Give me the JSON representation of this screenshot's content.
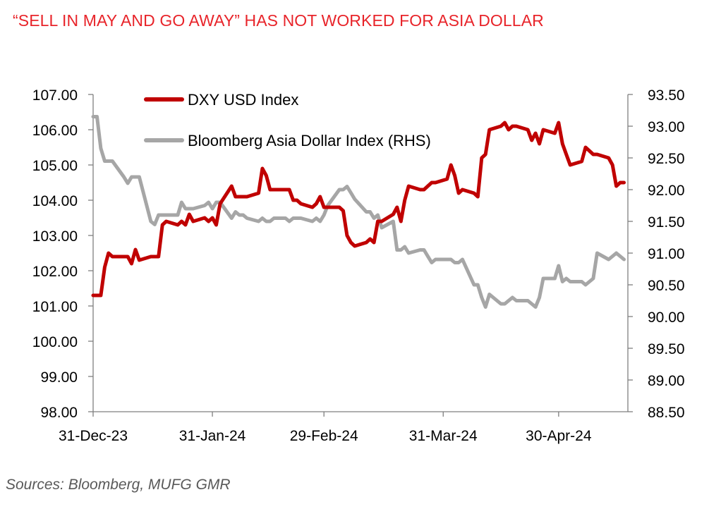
{
  "title": "“SELL IN MAY AND GO AWAY” HAS NOT WORKED FOR ASIA DOLLAR",
  "source": "Sources:  Bloomberg, MUFG GMR",
  "chart_data": {
    "type": "line",
    "title": "“SELL IN MAY AND GO AWAY” HAS NOT WORKED FOR ASIA DOLLAR",
    "x_ticks": [
      "31-Dec-23",
      "31-Jan-24",
      "29-Feb-24",
      "31-Mar-24",
      "30-Apr-24"
    ],
    "xlim": [
      "2023-12-31",
      "2024-05-18"
    ],
    "y_left": {
      "lim": [
        98,
        107
      ],
      "ticks": [
        "98.00",
        "99.00",
        "100.00",
        "101.00",
        "102.00",
        "103.00",
        "104.00",
        "105.00",
        "106.00",
        "107.00"
      ]
    },
    "y_right": {
      "lim": [
        88.5,
        93.5
      ],
      "ticks": [
        "88.50",
        "89.00",
        "89.50",
        "90.00",
        "90.50",
        "91.00",
        "91.50",
        "92.00",
        "92.50",
        "93.00",
        "93.50"
      ]
    },
    "legend_position": "top-left",
    "grid": false,
    "series": [
      {
        "name": "DXY USD Index",
        "axis": "left",
        "color": "#c00000",
        "points": [
          [
            "2023-12-31",
            101.3
          ],
          [
            "2024-01-01",
            101.3
          ],
          [
            "2024-01-02",
            101.3
          ],
          [
            "2024-01-03",
            102.1
          ],
          [
            "2024-01-04",
            102.5
          ],
          [
            "2024-01-05",
            102.4
          ],
          [
            "2024-01-08",
            102.4
          ],
          [
            "2024-01-09",
            102.4
          ],
          [
            "2024-01-10",
            102.2
          ],
          [
            "2024-01-11",
            102.6
          ],
          [
            "2024-01-12",
            102.3
          ],
          [
            "2024-01-15",
            102.4
          ],
          [
            "2024-01-16",
            102.4
          ],
          [
            "2024-01-17",
            102.4
          ],
          [
            "2024-01-18",
            103.3
          ],
          [
            "2024-01-19",
            103.4
          ],
          [
            "2024-01-22",
            103.3
          ],
          [
            "2024-01-23",
            103.4
          ],
          [
            "2024-01-24",
            103.3
          ],
          [
            "2024-01-25",
            103.6
          ],
          [
            "2024-01-26",
            103.4
          ],
          [
            "2024-01-29",
            103.5
          ],
          [
            "2024-01-30",
            103.4
          ],
          [
            "2024-01-31",
            103.5
          ],
          [
            "2024-02-01",
            103.3
          ],
          [
            "2024-02-02",
            103.9
          ],
          [
            "2024-02-05",
            104.4
          ],
          [
            "2024-02-06",
            104.1
          ],
          [
            "2024-02-07",
            104.1
          ],
          [
            "2024-02-08",
            104.1
          ],
          [
            "2024-02-09",
            104.1
          ],
          [
            "2024-02-12",
            104.2
          ],
          [
            "2024-02-13",
            104.9
          ],
          [
            "2024-02-14",
            104.7
          ],
          [
            "2024-02-15",
            104.3
          ],
          [
            "2024-02-16",
            104.3
          ],
          [
            "2024-02-19",
            104.3
          ],
          [
            "2024-02-20",
            104.3
          ],
          [
            "2024-02-21",
            104.0
          ],
          [
            "2024-02-22",
            104.0
          ],
          [
            "2024-02-23",
            103.9
          ],
          [
            "2024-02-26",
            103.8
          ],
          [
            "2024-02-27",
            103.9
          ],
          [
            "2024-02-28",
            104.1
          ],
          [
            "2024-02-29",
            103.8
          ],
          [
            "2024-03-01",
            103.8
          ],
          [
            "2024-03-04",
            103.8
          ],
          [
            "2024-03-05",
            103.7
          ],
          [
            "2024-03-06",
            103.0
          ],
          [
            "2024-03-07",
            102.8
          ],
          [
            "2024-03-08",
            102.7
          ],
          [
            "2024-03-11",
            102.8
          ],
          [
            "2024-03-12",
            102.9
          ],
          [
            "2024-03-13",
            102.8
          ],
          [
            "2024-03-14",
            103.4
          ],
          [
            "2024-03-15",
            103.4
          ],
          [
            "2024-03-18",
            103.6
          ],
          [
            "2024-03-19",
            103.8
          ],
          [
            "2024-03-20",
            103.4
          ],
          [
            "2024-03-21",
            104.0
          ],
          [
            "2024-03-22",
            104.4
          ],
          [
            "2024-03-25",
            104.3
          ],
          [
            "2024-03-26",
            104.3
          ],
          [
            "2024-03-27",
            104.4
          ],
          [
            "2024-03-28",
            104.5
          ],
          [
            "2024-03-29",
            104.5
          ],
          [
            "2024-04-01",
            104.6
          ],
          [
            "2024-04-02",
            105.0
          ],
          [
            "2024-04-03",
            104.7
          ],
          [
            "2024-04-04",
            104.2
          ],
          [
            "2024-04-05",
            104.3
          ],
          [
            "2024-04-08",
            104.2
          ],
          [
            "2024-04-09",
            104.1
          ],
          [
            "2024-04-10",
            105.2
          ],
          [
            "2024-04-11",
            105.3
          ],
          [
            "2024-04-12",
            106.0
          ],
          [
            "2024-04-15",
            106.1
          ],
          [
            "2024-04-16",
            106.2
          ],
          [
            "2024-04-17",
            106.0
          ],
          [
            "2024-04-18",
            106.1
          ],
          [
            "2024-04-19",
            106.1
          ],
          [
            "2024-04-22",
            106.0
          ],
          [
            "2024-04-23",
            105.7
          ],
          [
            "2024-04-24",
            105.9
          ],
          [
            "2024-04-25",
            105.6
          ],
          [
            "2024-04-26",
            106.0
          ],
          [
            "2024-04-29",
            105.9
          ],
          [
            "2024-04-30",
            106.2
          ],
          [
            "2024-05-01",
            105.6
          ],
          [
            "2024-05-02",
            105.3
          ],
          [
            "2024-05-03",
            105.0
          ],
          [
            "2024-05-06",
            105.1
          ],
          [
            "2024-05-07",
            105.5
          ],
          [
            "2024-05-08",
            105.4
          ],
          [
            "2024-05-09",
            105.3
          ],
          [
            "2024-05-10",
            105.3
          ],
          [
            "2024-05-13",
            105.2
          ],
          [
            "2024-05-14",
            105.0
          ],
          [
            "2024-05-15",
            104.4
          ],
          [
            "2024-05-16",
            104.5
          ],
          [
            "2024-05-17",
            104.5
          ]
        ]
      },
      {
        "name": "Bloomberg Asia Dollar Index (RHS)",
        "axis": "right",
        "color": "#a6a6a6",
        "points": [
          [
            "2023-12-31",
            93.15
          ],
          [
            "2024-01-01",
            93.15
          ],
          [
            "2024-01-02",
            92.65
          ],
          [
            "2024-01-03",
            92.45
          ],
          [
            "2024-01-04",
            92.45
          ],
          [
            "2024-01-05",
            92.45
          ],
          [
            "2024-01-08",
            92.2
          ],
          [
            "2024-01-09",
            92.1
          ],
          [
            "2024-01-10",
            92.2
          ],
          [
            "2024-01-11",
            92.2
          ],
          [
            "2024-01-12",
            92.2
          ],
          [
            "2024-01-15",
            91.5
          ],
          [
            "2024-01-16",
            91.45
          ],
          [
            "2024-01-17",
            91.6
          ],
          [
            "2024-01-18",
            91.6
          ],
          [
            "2024-01-19",
            91.6
          ],
          [
            "2024-01-22",
            91.6
          ],
          [
            "2024-01-23",
            91.8
          ],
          [
            "2024-01-24",
            91.7
          ],
          [
            "2024-01-25",
            91.7
          ],
          [
            "2024-01-26",
            91.7
          ],
          [
            "2024-01-29",
            91.75
          ],
          [
            "2024-01-30",
            91.8
          ],
          [
            "2024-01-31",
            91.7
          ],
          [
            "2024-02-01",
            91.8
          ],
          [
            "2024-02-02",
            91.8
          ],
          [
            "2024-02-05",
            91.55
          ],
          [
            "2024-02-06",
            91.65
          ],
          [
            "2024-02-07",
            91.6
          ],
          [
            "2024-02-08",
            91.6
          ],
          [
            "2024-02-09",
            91.55
          ],
          [
            "2024-02-12",
            91.5
          ],
          [
            "2024-02-13",
            91.55
          ],
          [
            "2024-02-14",
            91.5
          ],
          [
            "2024-02-15",
            91.5
          ],
          [
            "2024-02-16",
            91.55
          ],
          [
            "2024-02-19",
            91.55
          ],
          [
            "2024-02-20",
            91.5
          ],
          [
            "2024-02-21",
            91.55
          ],
          [
            "2024-02-22",
            91.55
          ],
          [
            "2024-02-23",
            91.55
          ],
          [
            "2024-02-26",
            91.5
          ],
          [
            "2024-02-27",
            91.55
          ],
          [
            "2024-02-28",
            91.5
          ],
          [
            "2024-02-29",
            91.6
          ],
          [
            "2024-03-01",
            91.75
          ],
          [
            "2024-03-04",
            92.0
          ],
          [
            "2024-03-05",
            92.0
          ],
          [
            "2024-03-06",
            92.05
          ],
          [
            "2024-03-07",
            91.95
          ],
          [
            "2024-03-08",
            91.85
          ],
          [
            "2024-03-11",
            91.65
          ],
          [
            "2024-03-12",
            91.65
          ],
          [
            "2024-03-13",
            91.55
          ],
          [
            "2024-03-14",
            91.6
          ],
          [
            "2024-03-15",
            91.4
          ],
          [
            "2024-03-18",
            91.5
          ],
          [
            "2024-03-19",
            91.05
          ],
          [
            "2024-03-20",
            91.05
          ],
          [
            "2024-03-21",
            91.1
          ],
          [
            "2024-03-22",
            91.0
          ],
          [
            "2024-03-25",
            91.05
          ],
          [
            "2024-03-26",
            91.05
          ],
          [
            "2024-03-27",
            90.95
          ],
          [
            "2024-03-28",
            90.85
          ],
          [
            "2024-03-29",
            90.9
          ],
          [
            "2024-04-01",
            90.9
          ],
          [
            "2024-04-02",
            90.9
          ],
          [
            "2024-04-03",
            90.85
          ],
          [
            "2024-04-04",
            90.85
          ],
          [
            "2024-04-05",
            90.9
          ],
          [
            "2024-04-08",
            90.5
          ],
          [
            "2024-04-09",
            90.5
          ],
          [
            "2024-04-10",
            90.3
          ],
          [
            "2024-04-11",
            90.15
          ],
          [
            "2024-04-12",
            90.35
          ],
          [
            "2024-04-15",
            90.2
          ],
          [
            "2024-04-16",
            90.2
          ],
          [
            "2024-04-17",
            90.25
          ],
          [
            "2024-04-18",
            90.3
          ],
          [
            "2024-04-19",
            90.25
          ],
          [
            "2024-04-22",
            90.25
          ],
          [
            "2024-04-23",
            90.2
          ],
          [
            "2024-04-24",
            90.15
          ],
          [
            "2024-04-25",
            90.3
          ],
          [
            "2024-04-26",
            90.6
          ],
          [
            "2024-04-29",
            90.6
          ],
          [
            "2024-04-30",
            90.8
          ],
          [
            "2024-05-01",
            90.55
          ],
          [
            "2024-05-02",
            90.6
          ],
          [
            "2024-05-03",
            90.55
          ],
          [
            "2024-05-06",
            90.55
          ],
          [
            "2024-05-07",
            90.5
          ],
          [
            "2024-05-08",
            90.55
          ],
          [
            "2024-05-09",
            90.6
          ],
          [
            "2024-05-10",
            91.0
          ],
          [
            "2024-05-13",
            90.9
          ],
          [
            "2024-05-14",
            90.95
          ],
          [
            "2024-05-15",
            91.0
          ],
          [
            "2024-05-16",
            90.95
          ],
          [
            "2024-05-17",
            90.9
          ]
        ]
      }
    ]
  }
}
